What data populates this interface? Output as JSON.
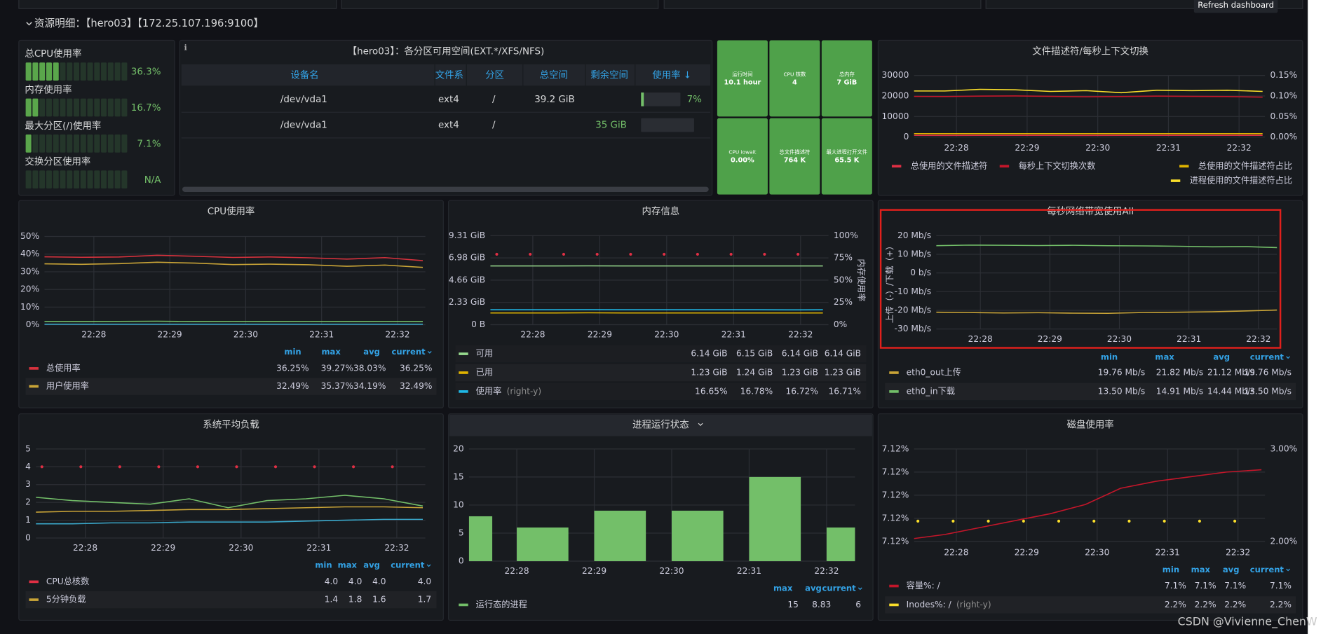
{
  "header": {
    "row_title": "资源明细：【hero03】【172.25.107.196:9100】",
    "tooltip": "Refresh dashboard"
  },
  "gauges": [
    {
      "label": "总CPU使用率",
      "value": 36.3,
      "value_label": "36.3%"
    },
    {
      "label": "内存使用率",
      "value": 16.7,
      "value_label": "16.7%"
    },
    {
      "label": "最大分区(/)使用率",
      "value": 7.1,
      "value_label": "7.1%"
    },
    {
      "label": "交换分区使用率",
      "value": null,
      "value_label": "N/A"
    }
  ],
  "table": {
    "title": "【hero03】：各分区可用空间(EXT.*/XFS/NFS)",
    "columns": [
      "设备名",
      "文件系",
      "分区",
      "总空间",
      "剩余空间",
      "使用率 ↓"
    ],
    "rows": [
      [
        "/dev/vda1",
        "ext4",
        "/",
        "39.2 GiB",
        null,
        {
          "value": 7,
          "label": "7%"
        }
      ],
      [
        "/dev/vda1",
        "ext4",
        "/",
        null,
        "35 GiB",
        null
      ]
    ]
  },
  "stats": [
    {
      "label": "运行时间",
      "value": "10.1 hour"
    },
    {
      "label": "CPU 核数",
      "value": "4"
    },
    {
      "label": "总内存",
      "value": "7 GiB"
    },
    {
      "label": "CPU iowait",
      "value": "0.00%"
    },
    {
      "label": "总文件描述符",
      "value": "764 K"
    },
    {
      "label": "最大进程打开文件",
      "value": "65.5 K"
    }
  ],
  "panels": [
    {
      "type": "line",
      "title": "文件描述符/每秒上下文切换",
      "x": [
        "22:27:20",
        "22:27:50",
        "22:28:20",
        "22:28:50",
        "22:29:20",
        "22:29:50",
        "22:30:20",
        "22:30:50",
        "22:31:20",
        "22:31:50",
        "22:32:20"
      ],
      "xlim": [
        "22:27:24",
        "22:32:22"
      ],
      "xticks": [
        "22:28",
        "22:29",
        "22:30",
        "22:31",
        "22:32"
      ],
      "ylim": [
        0,
        30000
      ],
      "yticks": [
        0,
        10000,
        20000,
        30000
      ],
      "y2lim": [
        0,
        0.15
      ],
      "y2ticks": [
        {
          "value": 0,
          "label": "0.00%"
        },
        {
          "value": 0.05,
          "label": "0.05%"
        },
        {
          "value": 0.1,
          "label": "0.10%"
        },
        {
          "value": 0.15,
          "label": "0.15%"
        }
      ],
      "series": [
        {
          "name": "总使用的文件描述符",
          "color": "#e02f44",
          "values": [
            820,
            810,
            830,
            840,
            820,
            810,
            830,
            820,
            840,
            830,
            820
          ]
        },
        {
          "name": "每秒上下文切换次数",
          "color": "#c4162a",
          "values": [
            19800,
            19700,
            19900,
            20000,
            19800,
            19600,
            19700,
            19900,
            19800,
            19700,
            19400
          ]
        },
        {
          "name": "总使用的文件描述符占比",
          "color": "#e0b400",
          "axis": "y2",
          "values": [
            0.0084,
            0.0084,
            0.0084,
            0.0084,
            0.0084,
            0.0084,
            0.0084,
            0.0084,
            0.0084,
            0.0084,
            0.0084
          ]
        },
        {
          "name": "进程使用的文件描述符占比",
          "color": "#fade2a",
          "axis": "y2",
          "values": [
            0.112,
            0.112,
            0.116,
            0.115,
            0.111,
            0.113,
            0.108,
            0.114,
            0.113,
            0.114,
            0.111
          ]
        }
      ]
    },
    {
      "type": "line",
      "title": "CPU使用率",
      "x": [
        "22:27:20",
        "22:27:50",
        "22:28:20",
        "22:28:50",
        "22:29:20",
        "22:29:50",
        "22:30:20",
        "22:30:50",
        "22:31:20",
        "22:31:50",
        "22:32:20"
      ],
      "xlim": [
        "22:27:21",
        "22:32:22"
      ],
      "xticks": [
        "22:28",
        "22:29",
        "22:30",
        "22:31",
        "22:32"
      ],
      "ylim": [
        0,
        50
      ],
      "yticks": [
        {
          "value": 0,
          "label": "0%"
        },
        {
          "value": 10,
          "label": "10%"
        },
        {
          "value": 20,
          "label": "20%"
        },
        {
          "value": 30,
          "label": "30%"
        },
        {
          "value": 40,
          "label": "40%"
        },
        {
          "value": 50,
          "label": "50%"
        }
      ],
      "legend_columns": [
        "min",
        "max",
        "avg",
        "current"
      ],
      "series": [
        {
          "name": "总使用率",
          "color": "#d6323d",
          "values": [
            38.5,
            38.2,
            38.4,
            39.3,
            38.8,
            38.1,
            38.4,
            37.9,
            37.2,
            38.0,
            36.3
          ],
          "legend_values": [
            "36.25%",
            "39.27%",
            "38.03%",
            "36.25%"
          ]
        },
        {
          "name": "用户使用率",
          "color": "#c9a437",
          "values": [
            34.5,
            34.2,
            34.6,
            35.4,
            34.9,
            34.1,
            34.3,
            34.0,
            33.1,
            33.8,
            32.5
          ],
          "legend_values": [
            "32.49%",
            "35.37%",
            "34.19%",
            "32.49%"
          ]
        },
        {
          "color": "#73bf69",
          "values": [
            1.9,
            1.8,
            1.9,
            2.0,
            1.8,
            1.9,
            1.8,
            1.9,
            1.8,
            1.9,
            1.8
          ]
        },
        {
          "color": "#3aa7c9",
          "values": [
            0.3,
            0.3,
            0.3,
            0.3,
            0.3,
            0.3,
            0.3,
            0.3,
            0.3,
            0.3,
            0.3
          ]
        }
      ]
    },
    {
      "type": "line",
      "title": "内存信息",
      "x": [
        "22:27:20",
        "22:27:50",
        "22:28:20",
        "22:28:50",
        "22:29:20",
        "22:29:50",
        "22:30:20",
        "22:30:50",
        "22:31:20",
        "22:31:50",
        "22:32:20"
      ],
      "xlim": [
        "22:27:22",
        "22:32:25"
      ],
      "xticks": [
        "22:28",
        "22:29",
        "22:30",
        "22:31",
        "22:32"
      ],
      "ylim": [
        0,
        9.31
      ],
      "yticks": [
        {
          "value": 0,
          "label": "0 B"
        },
        {
          "value": 2.33,
          "label": "2.33 GiB"
        },
        {
          "value": 4.66,
          "label": "4.66 GiB"
        },
        {
          "value": 6.98,
          "label": "6.98 GiB"
        },
        {
          "value": 9.31,
          "label": "9.31 GiB"
        }
      ],
      "y2lim": [
        0,
        100
      ],
      "y2ticks": [
        {
          "value": 0,
          "label": "0%"
        },
        {
          "value": 25,
          "label": "25%"
        },
        {
          "value": 50,
          "label": "50%"
        },
        {
          "value": 75,
          "label": "75%"
        },
        {
          "value": 100,
          "label": "100%"
        }
      ],
      "y2label": "内存使用率",
      "series": [
        {
          "name": "可用",
          "color": "#96d98d",
          "values": [
            6.14,
            6.14,
            6.14,
            6.15,
            6.14,
            6.14,
            6.14,
            6.14,
            6.14,
            6.14,
            6.14
          ],
          "legend_values": [
            "6.14 GiB",
            "6.15 GiB",
            "6.14 GiB",
            "6.14 GiB"
          ]
        },
        {
          "name": "已用",
          "color": "#e0b400",
          "values": [
            1.23,
            1.23,
            1.23,
            1.24,
            1.23,
            1.23,
            1.23,
            1.23,
            1.23,
            1.23,
            1.23
          ],
          "legend_values": [
            "1.23 GiB",
            "1.24 GiB",
            "1.23 GiB",
            "1.23 GiB"
          ]
        },
        {
          "name": "使用率",
          "axis_note": "(right-y)",
          "color": "#1fb8e6",
          "axis": "y2",
          "values": [
            16.7,
            16.7,
            16.7,
            16.78,
            16.72,
            16.7,
            16.7,
            16.7,
            16.7,
            16.68,
            16.71
          ],
          "legend_values": [
            "16.65%",
            "16.78%",
            "16.72%",
            "16.71%"
          ]
        },
        {
          "color": "#e02f44",
          "style": "points",
          "values": [
            7.36,
            7.36,
            7.36,
            7.36,
            7.36,
            7.36,
            7.36,
            7.36,
            7.36,
            7.36,
            null
          ]
        }
      ]
    },
    {
      "type": "line",
      "title": "每秒网络带宽使用All",
      "x": [
        "22:27:20",
        "22:27:50",
        "22:28:20",
        "22:28:50",
        "22:29:20",
        "22:29:50",
        "22:30:20",
        "22:30:50",
        "22:31:20",
        "22:31:50",
        "22:32:20"
      ],
      "xlim": [
        "22:27:22",
        "22:32:16"
      ],
      "xticks": [
        "22:28",
        "22:29",
        "22:30",
        "22:31",
        "22:32"
      ],
      "ylim": [
        -30,
        20
      ],
      "yticks": [
        {
          "value": -30,
          "label": "-30 Mb/s"
        },
        {
          "value": -20,
          "label": "-20 Mb/s"
        },
        {
          "value": -10,
          "label": "-10 Mb/s"
        },
        {
          "value": 0,
          "label": "0 b/s"
        },
        {
          "value": 10,
          "label": "10 Mb/s"
        },
        {
          "value": 20,
          "label": "20 Mb/s"
        }
      ],
      "ylabel": "上传（-）/下载（+）",
      "legend_columns": [
        "min",
        "max",
        "avg",
        "current"
      ],
      "series": [
        {
          "name": "eth0_out上传",
          "color": "#c9a437",
          "values": [
            -21.0,
            -21.2,
            -21.4,
            -21.3,
            -21.5,
            -21.6,
            -21.2,
            -21.0,
            -20.8,
            -20.3,
            -19.76
          ],
          "legend_values": [
            "19.76 Mb/s",
            "21.82 Mb/s",
            "21.12 Mb/s",
            "19.76 Mb/s"
          ]
        },
        {
          "name": "eth0_in下载",
          "color": "#73bf69",
          "values": [
            14.6,
            14.9,
            14.8,
            14.7,
            14.8,
            14.6,
            14.5,
            14.3,
            14.0,
            14.1,
            13.5
          ],
          "legend_values": [
            "13.50 Mb/s",
            "14.91 Mb/s",
            "14.44 Mb/s",
            "13.50 Mb/s"
          ]
        }
      ]
    },
    {
      "type": "line",
      "title": "系统平均负载",
      "x": [
        "22:27:20",
        "22:27:50",
        "22:28:20",
        "22:28:50",
        "22:29:20",
        "22:29:50",
        "22:30:20",
        "22:30:50",
        "22:31:20",
        "22:31:50",
        "22:32:20"
      ],
      "xlim": [
        "22:27:22",
        "22:32:22"
      ],
      "xticks": [
        "22:28",
        "22:29",
        "22:30",
        "22:31",
        "22:32"
      ],
      "ylim": [
        0,
        5
      ],
      "yticks": [
        0,
        1,
        2,
        3,
        4,
        5
      ],
      "legend_columns": [
        "min",
        "max",
        "avg",
        "current"
      ],
      "series": [
        {
          "name": "CPU总核数",
          "color": "#e02f44",
          "style": "points",
          "values": [
            4,
            4,
            4,
            4,
            4,
            4,
            4,
            4,
            4,
            4,
            null
          ],
          "legend_values": [
            "4.0",
            "4.0",
            "4.0",
            "4.0"
          ]
        },
        {
          "name": "5分钟负载",
          "color": "#c9a437",
          "values": [
            1.45,
            1.5,
            1.5,
            1.55,
            1.6,
            1.6,
            1.65,
            1.7,
            1.75,
            1.75,
            1.7
          ],
          "legend_values": [
            "1.4",
            "1.8",
            "1.6",
            "1.7"
          ]
        },
        {
          "color": "#73bf69",
          "values": [
            2.3,
            2.1,
            2.0,
            1.9,
            2.2,
            1.7,
            2.1,
            2.2,
            2.4,
            2.2,
            1.8
          ]
        },
        {
          "color": "#3aa7c9",
          "values": [
            0.8,
            0.8,
            0.85,
            0.85,
            0.9,
            0.9,
            0.9,
            0.95,
            1.0,
            1.05,
            1.05
          ]
        }
      ]
    },
    {
      "type": "bar",
      "title": "进程运行状态",
      "x": [
        "22:27:21",
        "22:28:20",
        "22:29:20",
        "22:30:20",
        "22:31:20",
        "22:32:20"
      ],
      "xlim": [
        "22:27:23",
        "22:32:22"
      ],
      "xticks": [
        "22:28",
        "22:29",
        "22:30",
        "22:31",
        "22:32"
      ],
      "ylim": [
        0,
        20
      ],
      "yticks": [
        0,
        5,
        10,
        15,
        20
      ],
      "legend_columns": [
        "max",
        "avg",
        "current"
      ],
      "series": [
        {
          "name": "运行态的进程",
          "color": "#73bf69",
          "values": [
            8,
            6,
            9,
            9,
            15,
            6
          ],
          "legend_values": [
            "15",
            "8.83",
            "6"
          ]
        }
      ]
    },
    {
      "type": "line",
      "title": "磁盘使用率",
      "x": [
        "22:27:20",
        "22:27:50",
        "22:28:20",
        "22:28:50",
        "22:29:20",
        "22:29:50",
        "22:30:20",
        "22:30:50",
        "22:31:20",
        "22:31:50",
        "22:32:20"
      ],
      "xlim": [
        "22:27:24",
        "22:32:23"
      ],
      "xticks": [
        "22:28",
        "22:29",
        "22:30",
        "22:31",
        "22:32"
      ],
      "ylim": [
        7.116,
        7.12
      ],
      "yticks": [
        {
          "value": 7.116,
          "label": "7.12%"
        },
        {
          "value": 7.117,
          "label": "7.12%"
        },
        {
          "value": 7.118,
          "label": "7.12%"
        },
        {
          "value": 7.119,
          "label": "7.12%"
        },
        {
          "value": 7.12,
          "label": "7.12%"
        }
      ],
      "y2lim": [
        2,
        3
      ],
      "y2ticks": [
        {
          "value": 2,
          "label": "2.00%"
        },
        {
          "value": 3,
          "label": "3.00%"
        }
      ],
      "legend_columns": [
        "min",
        "max",
        "avg",
        "current"
      ],
      "series": [
        {
          "name": "容量%: /",
          "color": "#c4162a",
          "values": [
            7.1161,
            7.1163,
            7.1166,
            7.1169,
            7.1172,
            7.1176,
            7.1183,
            7.1186,
            7.1188,
            7.119,
            7.1191
          ],
          "legend_values": [
            "7.1%",
            "7.1%",
            "7.1%",
            "7.1%"
          ]
        },
        {
          "name": "Inodes%: /",
          "axis_note": "(right-y)",
          "color": "#fade2a",
          "axis": "y2",
          "style": "points",
          "values": [
            2.22,
            2.22,
            2.22,
            2.22,
            2.22,
            2.22,
            2.22,
            2.22,
            2.22,
            2.22,
            null
          ],
          "legend_values": [
            "2.2%",
            "2.2%",
            "2.2%",
            "2.2%"
          ]
        }
      ]
    }
  ],
  "watermark": "CSDN @Vivienne_ChenW"
}
